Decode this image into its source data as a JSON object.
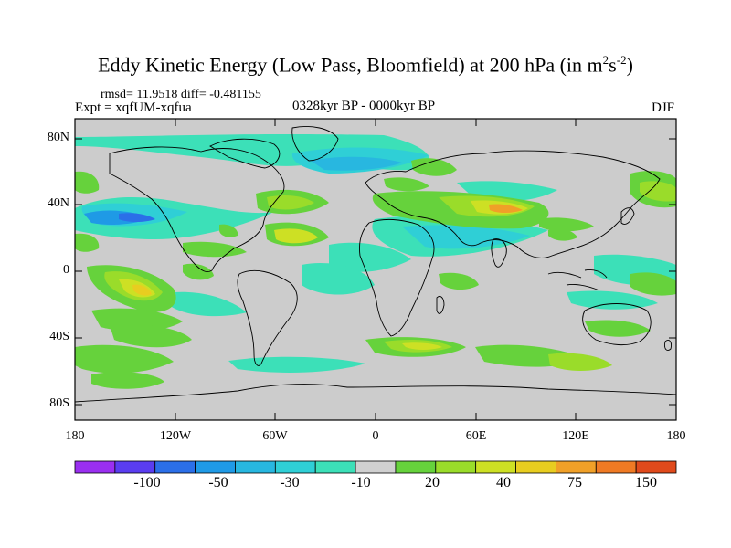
{
  "title": {
    "main": "Eddy Kinetic Energy (Low Pass, Bloomfield) at 200 hPa (in m",
    "sup1": "2",
    "mid": "s",
    "sup2": "-2",
    "end": ")"
  },
  "stats": "rmsd= 11.9518  diff= -0.481155",
  "expt": "Expt = xqfUM-xqfua",
  "period": "0328kyr BP - 0000kyr BP",
  "season": "DJF",
  "lat_labels": [
    "80N",
    "40N",
    "0",
    "40S",
    "80S"
  ],
  "lon_labels": [
    "180",
    "120W",
    "60W",
    "0",
    "60E",
    "120E",
    "180"
  ],
  "colorbar": {
    "colors": [
      "#9a2ff0",
      "#5a3df0",
      "#2b6fe8",
      "#1f9ae6",
      "#28b7e0",
      "#2fcfd6",
      "#3ce0b8",
      "#d0d0d0",
      "#66d23c",
      "#9adc2a",
      "#cde024",
      "#e8cd20",
      "#f0a028",
      "#ef7a24",
      "#e04a1c"
    ],
    "labels": [
      "-100",
      "-50",
      "-30",
      "-10",
      "20",
      "40",
      "75",
      "150"
    ]
  },
  "colors": {
    "land_outline": "#000000",
    "background_field": "#cccccc"
  }
}
